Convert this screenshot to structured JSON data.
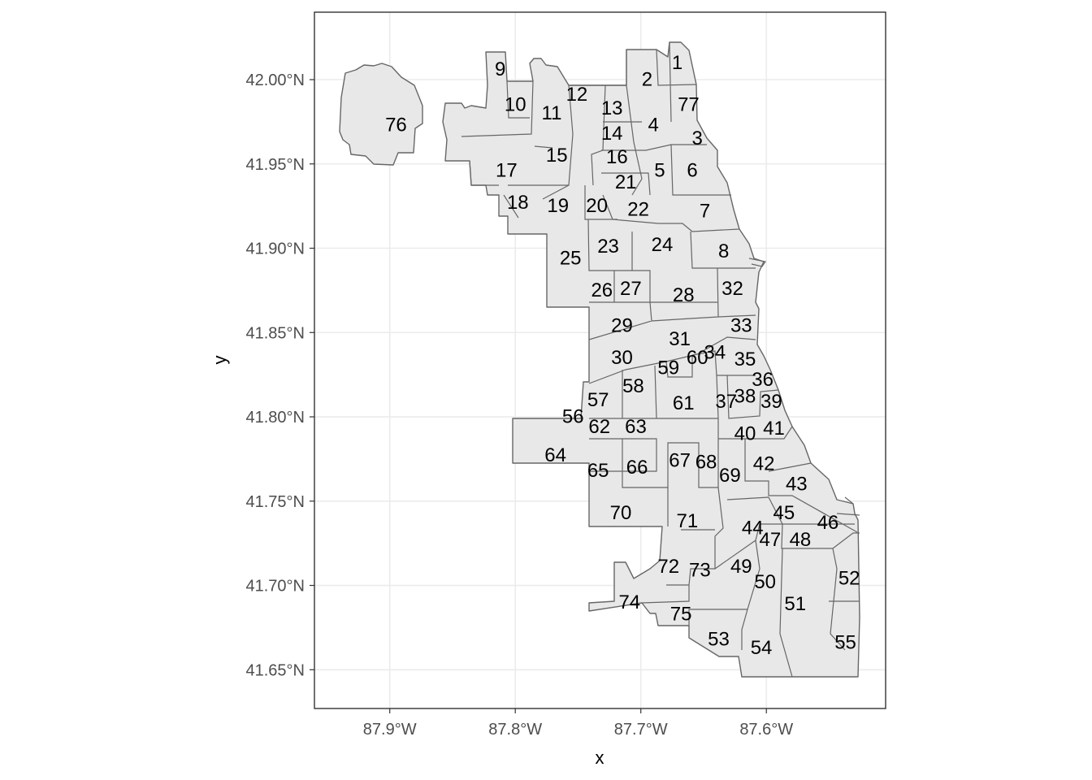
{
  "chart_data": {
    "type": "choropleth-map",
    "title": "",
    "xlabel": "x",
    "ylabel": "y",
    "xlim": [
      -87.96,
      -87.505
    ],
    "ylim": [
      41.627,
      42.04
    ],
    "x_ticks": [
      {
        "value": -87.9,
        "label": "87.9°W"
      },
      {
        "value": -87.8,
        "label": "87.8°W"
      },
      {
        "value": -87.7,
        "label": "87.7°W"
      },
      {
        "value": -87.6,
        "label": "87.6°W"
      }
    ],
    "y_ticks": [
      {
        "value": 42.0,
        "label": "42.00°N"
      },
      {
        "value": 41.95,
        "label": "41.95°N"
      },
      {
        "value": 41.9,
        "label": "41.90°N"
      },
      {
        "value": 41.85,
        "label": "41.85°N"
      },
      {
        "value": 41.8,
        "label": "41.80°N"
      },
      {
        "value": 41.75,
        "label": "41.75°N"
      },
      {
        "value": 41.7,
        "label": "41.70°N"
      },
      {
        "value": 41.65,
        "label": "41.65°N"
      }
    ],
    "grid": true,
    "fill_color": "#e8e8e8",
    "border_color": "#666666",
    "areas": [
      {
        "label": "1",
        "lon": -87.671,
        "lat": 42.01
      },
      {
        "label": "2",
        "lon": -87.695,
        "lat": 42.0
      },
      {
        "label": "3",
        "lon": -87.655,
        "lat": 41.965
      },
      {
        "label": "4",
        "lon": -87.69,
        "lat": 41.973
      },
      {
        "label": "5",
        "lon": -87.685,
        "lat": 41.946
      },
      {
        "label": "6",
        "lon": -87.659,
        "lat": 41.946
      },
      {
        "label": "7",
        "lon": -87.649,
        "lat": 41.922
      },
      {
        "label": "8",
        "lon": -87.634,
        "lat": 41.898
      },
      {
        "label": "9",
        "lon": -87.812,
        "lat": 42.006
      },
      {
        "label": "10",
        "lon": -87.8,
        "lat": 41.985
      },
      {
        "label": "11",
        "lon": -87.771,
        "lat": 41.98
      },
      {
        "label": "12",
        "lon": -87.751,
        "lat": 41.991
      },
      {
        "label": "13",
        "lon": -87.723,
        "lat": 41.983
      },
      {
        "label": "14",
        "lon": -87.723,
        "lat": 41.968
      },
      {
        "label": "15",
        "lon": -87.767,
        "lat": 41.955
      },
      {
        "label": "16",
        "lon": -87.719,
        "lat": 41.954
      },
      {
        "label": "17",
        "lon": -87.807,
        "lat": 41.946
      },
      {
        "label": "18",
        "lon": -87.798,
        "lat": 41.927
      },
      {
        "label": "19",
        "lon": -87.766,
        "lat": 41.925
      },
      {
        "label": "20",
        "lon": -87.735,
        "lat": 41.925
      },
      {
        "label": "21",
        "lon": -87.712,
        "lat": 41.939
      },
      {
        "label": "22",
        "lon": -87.702,
        "lat": 41.923
      },
      {
        "label": "23",
        "lon": -87.726,
        "lat": 41.901
      },
      {
        "label": "24",
        "lon": -87.683,
        "lat": 41.902
      },
      {
        "label": "25",
        "lon": -87.756,
        "lat": 41.894
      },
      {
        "label": "26",
        "lon": -87.731,
        "lat": 41.875
      },
      {
        "label": "27",
        "lon": -87.708,
        "lat": 41.876
      },
      {
        "label": "28",
        "lon": -87.666,
        "lat": 41.872
      },
      {
        "label": "29",
        "lon": -87.715,
        "lat": 41.854
      },
      {
        "label": "30",
        "lon": -87.715,
        "lat": 41.835
      },
      {
        "label": "31",
        "lon": -87.669,
        "lat": 41.846
      },
      {
        "label": "32",
        "lon": -87.627,
        "lat": 41.876
      },
      {
        "label": "33",
        "lon": -87.62,
        "lat": 41.854
      },
      {
        "label": "34",
        "lon": -87.641,
        "lat": 41.838
      },
      {
        "label": "35",
        "lon": -87.617,
        "lat": 41.834
      },
      {
        "label": "36",
        "lon": -87.603,
        "lat": 41.822
      },
      {
        "label": "37",
        "lon": -87.632,
        "lat": 41.809
      },
      {
        "label": "38",
        "lon": -87.617,
        "lat": 41.812
      },
      {
        "label": "39",
        "lon": -87.596,
        "lat": 41.809
      },
      {
        "label": "40",
        "lon": -87.617,
        "lat": 41.79
      },
      {
        "label": "41",
        "lon": -87.594,
        "lat": 41.793
      },
      {
        "label": "42",
        "lon": -87.602,
        "lat": 41.772
      },
      {
        "label": "43",
        "lon": -87.576,
        "lat": 41.76
      },
      {
        "label": "44",
        "lon": -87.611,
        "lat": 41.734
      },
      {
        "label": "45",
        "lon": -87.586,
        "lat": 41.743
      },
      {
        "label": "46",
        "lon": -87.551,
        "lat": 41.737
      },
      {
        "label": "47",
        "lon": -87.597,
        "lat": 41.727
      },
      {
        "label": "48",
        "lon": -87.573,
        "lat": 41.727
      },
      {
        "label": "49",
        "lon": -87.62,
        "lat": 41.711
      },
      {
        "label": "50",
        "lon": -87.601,
        "lat": 41.702
      },
      {
        "label": "51",
        "lon": -87.577,
        "lat": 41.689
      },
      {
        "label": "52",
        "lon": -87.534,
        "lat": 41.704
      },
      {
        "label": "53",
        "lon": -87.638,
        "lat": 41.668
      },
      {
        "label": "54",
        "lon": -87.604,
        "lat": 41.663
      },
      {
        "label": "55",
        "lon": -87.537,
        "lat": 41.666
      },
      {
        "label": "56",
        "lon": -87.754,
        "lat": 41.8
      },
      {
        "label": "57",
        "lon": -87.734,
        "lat": 41.81
      },
      {
        "label": "58",
        "lon": -87.706,
        "lat": 41.818
      },
      {
        "label": "59",
        "lon": -87.678,
        "lat": 41.829
      },
      {
        "label": "60",
        "lon": -87.655,
        "lat": 41.835
      },
      {
        "label": "61",
        "lon": -87.666,
        "lat": 41.808
      },
      {
        "label": "62",
        "lon": -87.733,
        "lat": 41.794
      },
      {
        "label": "63",
        "lon": -87.704,
        "lat": 41.794
      },
      {
        "label": "64",
        "lon": -87.768,
        "lat": 41.777
      },
      {
        "label": "65",
        "lon": -87.734,
        "lat": 41.768
      },
      {
        "label": "66",
        "lon": -87.703,
        "lat": 41.77
      },
      {
        "label": "67",
        "lon": -87.669,
        "lat": 41.774
      },
      {
        "label": "68",
        "lon": -87.648,
        "lat": 41.773
      },
      {
        "label": "69",
        "lon": -87.629,
        "lat": 41.765
      },
      {
        "label": "70",
        "lon": -87.716,
        "lat": 41.743
      },
      {
        "label": "71",
        "lon": -87.663,
        "lat": 41.738
      },
      {
        "label": "72",
        "lon": -87.678,
        "lat": 41.711
      },
      {
        "label": "73",
        "lon": -87.653,
        "lat": 41.709
      },
      {
        "label": "74",
        "lon": -87.709,
        "lat": 41.69
      },
      {
        "label": "75",
        "lon": -87.668,
        "lat": 41.683
      },
      {
        "label": "76",
        "lon": -87.895,
        "lat": 41.973
      },
      {
        "label": "77",
        "lon": -87.662,
        "lat": 41.985
      }
    ]
  }
}
